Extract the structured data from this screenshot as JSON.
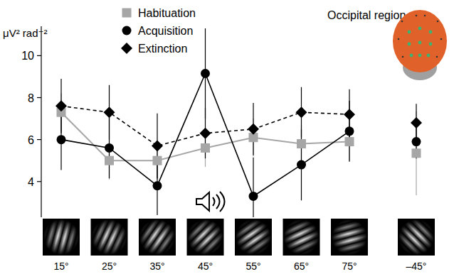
{
  "chart_data": {
    "type": "line",
    "y_label": "μV² rad⁻²",
    "annotation": "Occipital region",
    "categories": [
      "15°",
      "25°",
      "35°",
      "45°",
      "55°",
      "65°",
      "75°"
    ],
    "control_category": "–45°",
    "ylim": [
      2.3,
      11.4
    ],
    "yticks": [
      4,
      6,
      8,
      10
    ],
    "grid": false,
    "legend": "top",
    "series": [
      {
        "name": "Habituation",
        "color": "#a6a6a6",
        "marker": "square",
        "line_style": "solid",
        "values": [
          7.3,
          5.0,
          5.0,
          5.6,
          6.1,
          5.8,
          5.9
        ],
        "errors": [
          0.9,
          0.9,
          0.9,
          0.9,
          0.9,
          0.9,
          0.9
        ],
        "control_value": 5.35,
        "control_error": 2.0
      },
      {
        "name": "Acquisition",
        "color": "#000000",
        "marker": "circle",
        "line_style": "solid",
        "values": [
          6.0,
          5.6,
          3.8,
          9.15,
          3.3,
          4.8,
          6.4
        ],
        "errors": [
          1.45,
          1.45,
          1.4,
          2.15,
          1.85,
          1.7,
          1.45
        ],
        "control_value": 5.9,
        "control_error": 0.8
      },
      {
        "name": "Extinction",
        "color": "#000000",
        "marker": "diamond",
        "line_style": "dashed",
        "values": [
          7.6,
          7.3,
          5.7,
          6.3,
          6.5,
          7.3,
          7.2
        ],
        "errors": [
          1.3,
          1.3,
          1.55,
          1.2,
          1.25,
          1.2,
          1.2
        ],
        "control_value": 6.8,
        "control_error": 0.9
      }
    ]
  }
}
